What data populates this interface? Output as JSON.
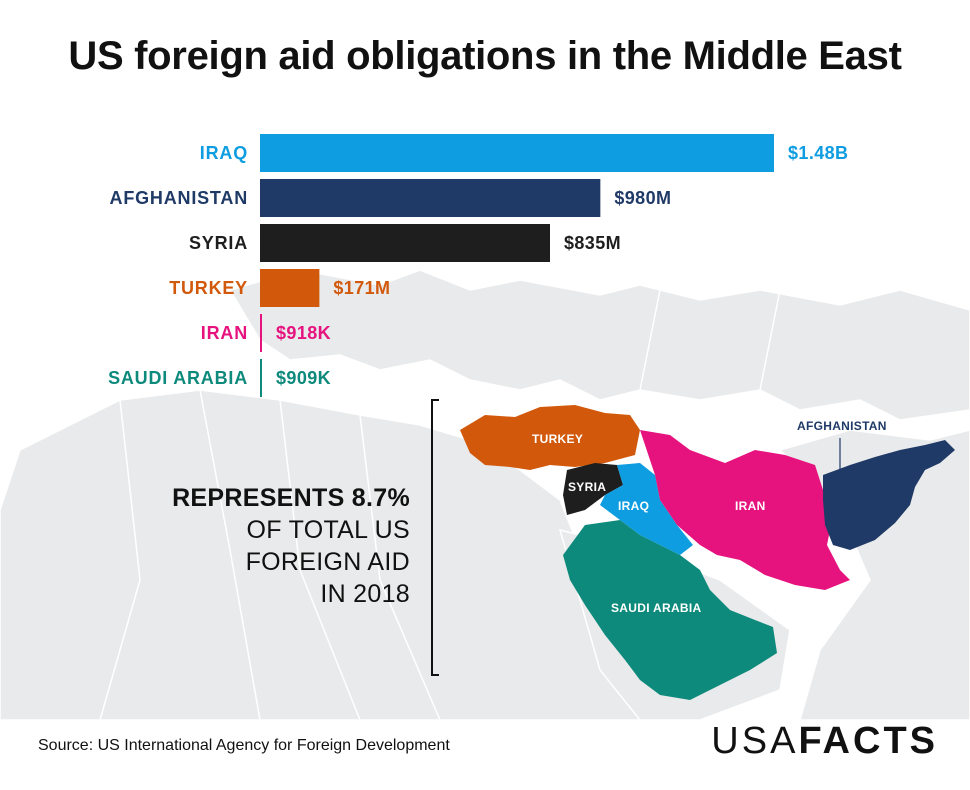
{
  "title": "US foreign aid obligations in the Middle East",
  "chart_data": {
    "type": "bar",
    "orientation": "horizontal",
    "categories": [
      "IRAQ",
      "AFGHANISTAN",
      "SYRIA",
      "TURKEY",
      "IRAN",
      "SAUDI ARABIA"
    ],
    "values": [
      1480000000,
      980000000,
      835000000,
      171000000,
      918000,
      909000
    ],
    "value_labels": [
      "$1.48B",
      "$980M",
      "$835M",
      "$171M",
      "$918K",
      "$909K"
    ],
    "colors": [
      "#0d9de0",
      "#1f3a67",
      "#1e1e1e",
      "#d2590b",
      "#e6137f",
      "#0d8a7c"
    ],
    "xlim": [
      0,
      1480000000
    ]
  },
  "map": {
    "labels": {
      "turkey": "TURKEY",
      "syria": "SYRIA",
      "iraq": "IRAQ",
      "iran": "IRAN",
      "saudi": "SAUDI ARABIA",
      "afghanistan": "AFGHANISTAN"
    }
  },
  "callout": {
    "strong": "REPRESENTS 8.7%",
    "line1": "OF TOTAL US",
    "line2": "FOREIGN AID",
    "line3": "IN 2018"
  },
  "source": "Source: US International Agency for Foreign Development",
  "logo": {
    "light": "USA",
    "bold": "FACTS"
  }
}
